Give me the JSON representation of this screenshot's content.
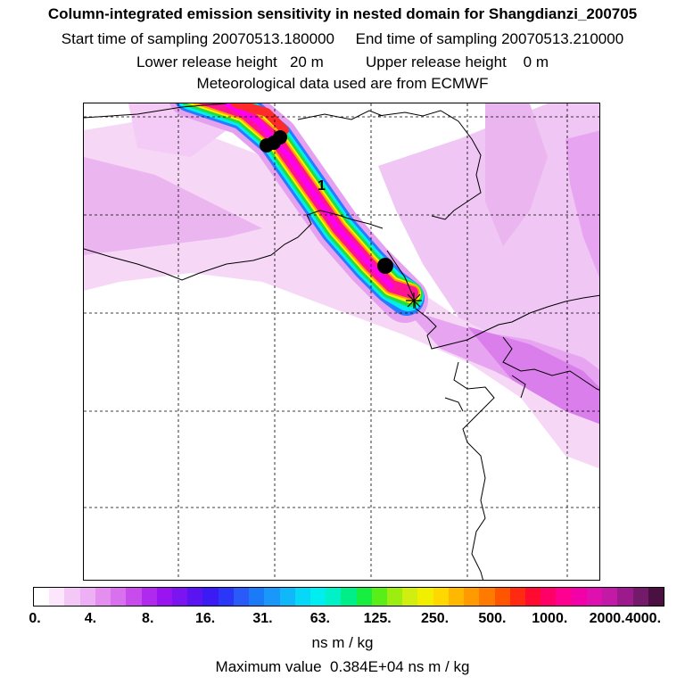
{
  "header": {
    "title": "Column-integrated emission sensitivity in nested domain for Shangdianzi_200705",
    "line2": "Start time of sampling 20070513.180000     End time of sampling 20070513.210000",
    "line3": "Lower release height   20 m          Upper release height    0 m",
    "line4": "Meteorological data used are from ECMWF"
  },
  "map": {
    "contour_label": "1",
    "colors": {
      "light_pink": "#f6d6f6",
      "pink": "#eaaaf0",
      "violet": "#d978ec",
      "magenta": "#ff00ee",
      "hot_pink": "#ff1493",
      "deep_pink": "#e8007a",
      "red": "#ff2a2a",
      "orange": "#ffa000",
      "yellow": "#ffee00",
      "green": "#22dd44",
      "cyan": "#00eeee",
      "blue": "#2a7aff",
      "purple": "#9a20ff",
      "coast": "#000000",
      "grid": "#000000"
    },
    "icons": {
      "receptor": "star-marker-icon",
      "points": "filled-circle-icon"
    }
  },
  "colorbar": {
    "colors": [
      "#ffffff",
      "#fbe6fb",
      "#f4c8f6",
      "#eeb0f4",
      "#e48ef0",
      "#d970ee",
      "#c84cec",
      "#b02aee",
      "#9a14f2",
      "#7c14f2",
      "#5a14f2",
      "#3c1af4",
      "#2a36f8",
      "#2a5af8",
      "#1a7af8",
      "#1a98fa",
      "#10b8fa",
      "#08d8f8",
      "#00eef0",
      "#00f0c8",
      "#00ee88",
      "#18ee40",
      "#5aee18",
      "#9cee10",
      "#d0ee10",
      "#f2ee00",
      "#ffd800",
      "#ffb800",
      "#ff9a00",
      "#ff7a00",
      "#ff5400",
      "#ff2a10",
      "#ff0a30",
      "#ff0066",
      "#ff0090",
      "#f200a8",
      "#de10b0",
      "#c21aa6",
      "#9c1a8c",
      "#741a6a",
      "#4a1042"
    ],
    "tick_labels": [
      "0.",
      "4.",
      "8.",
      "16.",
      "31.",
      "63.",
      "125.",
      "250.",
      "500.",
      "1000.",
      "2000.",
      "4000."
    ],
    "unit": "ns m / kg"
  },
  "footer": {
    "max_value": "Maximum value  0.384E+04 ns m / kg"
  }
}
